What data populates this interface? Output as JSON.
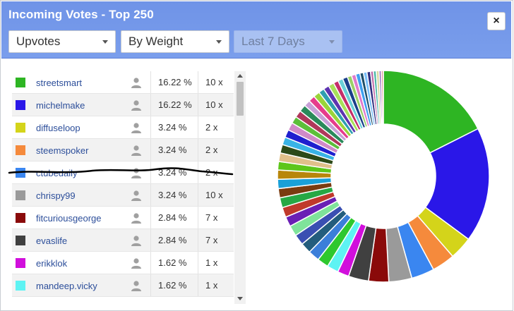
{
  "dialog": {
    "title": "Incoming Votes - Top 250",
    "close_label": "×"
  },
  "filters": {
    "type": "Upvotes",
    "sort": "By Weight",
    "period": "Last 7 Days"
  },
  "voters": [
    {
      "name": "streetsmart",
      "percent": "16.22 %",
      "count": "10 x",
      "color": "#2eb523"
    },
    {
      "name": "michelmake",
      "percent": "16.22 %",
      "count": "10 x",
      "color": "#2a17e8"
    },
    {
      "name": "diffuseloop",
      "percent": "3.24 %",
      "count": "2 x",
      "color": "#d4d41a"
    },
    {
      "name": "steemspoker",
      "percent": "3.24 %",
      "count": "2 x",
      "color": "#f58a3c"
    },
    {
      "name": "ctubedaily",
      "percent": "3.24 %",
      "count": "2 x",
      "color": "#3a86f0"
    },
    {
      "name": "chrispy99",
      "percent": "3.24 %",
      "count": "10 x",
      "color": "#9a9a9a"
    },
    {
      "name": "fitcuriousgeorge",
      "percent": "2.84 %",
      "count": "7 x",
      "color": "#8a0a0a"
    },
    {
      "name": "evaslife",
      "percent": "2.84 %",
      "count": "7 x",
      "color": "#404040"
    },
    {
      "name": "erikklok",
      "percent": "1.62 %",
      "count": "1 x",
      "color": "#d10fdc"
    },
    {
      "name": "mandeep.vicky",
      "percent": "1.62 %",
      "count": "1 x",
      "color": "#5ef3f3"
    }
  ],
  "chart_data": {
    "type": "pie",
    "values": [
      16.22,
      16.22,
      3.24,
      3.24,
      3.24,
      3.24,
      2.84,
      2.84,
      1.62,
      1.62,
      1.6,
      1.6,
      1.5,
      1.5,
      1.5,
      1.4,
      1.4,
      1.4,
      1.3,
      1.3,
      1.3,
      1.2,
      1.2,
      1.2,
      1.1,
      1.1,
      1.1,
      1.0,
      1.0,
      1.0,
      0.9,
      0.9,
      0.9,
      0.8,
      0.8,
      0.8,
      0.7,
      0.7,
      0.7,
      0.6,
      0.6,
      0.6,
      0.5,
      0.5,
      0.5,
      0.4,
      0.4,
      0.4,
      0.3,
      0.3
    ],
    "colors": [
      "#2eb523",
      "#2a17e8",
      "#d4d41a",
      "#f58a3c",
      "#3a86f0",
      "#9a9a9a",
      "#8a0a0a",
      "#404040",
      "#d10fdc",
      "#5ef3f3",
      "#2ec82e",
      "#3b7fd9",
      "#235d7d",
      "#3a4fb2",
      "#7fe39a",
      "#6a1fb5",
      "#c0392b",
      "#27a844",
      "#7a3b10",
      "#1aa0d8",
      "#b8860b",
      "#5dc61a",
      "#e0c08a",
      "#2c4a18",
      "#39b3e6",
      "#1f1fcf",
      "#d08ac8",
      "#5cbf3a",
      "#b0385a",
      "#2a8a5a",
      "#c8a0d8",
      "#e63c8c",
      "#9ad43a",
      "#2f9fb0",
      "#5d34b0",
      "#a8e05a",
      "#c42e6a",
      "#6ad0d8",
      "#1a3f8a",
      "#9bd068",
      "#e07acb",
      "#3fa0f0",
      "#1d4f6a",
      "#7ac0f8",
      "#2f2f7f",
      "#c06aa8",
      "#4ab8a8",
      "#d8d8a0",
      "#8a5ab8",
      "#e0a0a0"
    ]
  }
}
